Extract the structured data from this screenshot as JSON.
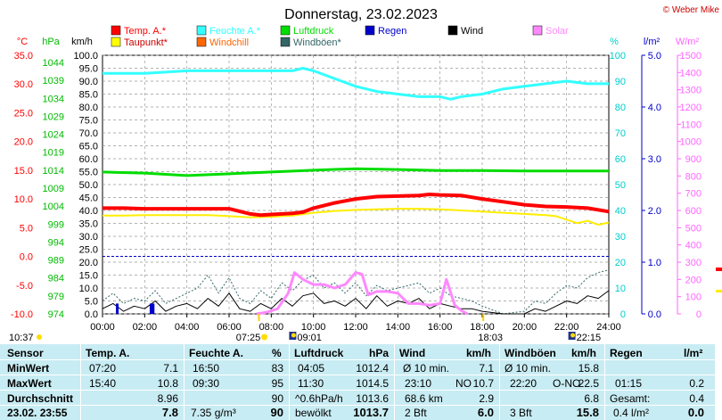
{
  "chart_data": {
    "type": "line",
    "title": "Donnerstag, 23.02.2023",
    "credit": "© Weber Mike",
    "xticks": [
      "00:00",
      "02:00",
      "04:00",
      "06:00",
      "08:00",
      "10:00",
      "12:00",
      "14:00",
      "16:00",
      "18:00",
      "20:00",
      "22:00",
      "24:00"
    ],
    "axes": {
      "temp": {
        "unit": "°C",
        "min": -10,
        "max": 35,
        "ticks": [
          "35.0",
          "30.0",
          "25.0",
          "20.0",
          "15.0",
          "10.0",
          "5.0",
          "0.0",
          "-5.0",
          "-10.0"
        ]
      },
      "pressure": {
        "unit": "hPa",
        "ticks": [
          "1044",
          "1039",
          "1034",
          "1029",
          "1024",
          "1019",
          "1014",
          "1009",
          "1004",
          "999",
          "994",
          "989",
          "984",
          "979",
          "974"
        ]
      },
      "wind": {
        "unit": "km/h",
        "min": 0,
        "max": 100,
        "ticks": [
          "100.0",
          "95.0",
          "90.0",
          "85.0",
          "80.0",
          "75.0",
          "70.0",
          "65.0",
          "60.0",
          "55.0",
          "50.0",
          "45.0",
          "40.0",
          "35.0",
          "30.0",
          "25.0",
          "20.0",
          "15.0",
          "10.0",
          "5.0",
          "0.0"
        ]
      },
      "humidity": {
        "unit": "%",
        "ticks": [
          "100",
          "90",
          "80",
          "70",
          "60",
          "50",
          "40",
          "30",
          "20",
          "10",
          "0"
        ]
      },
      "rain": {
        "unit": "l/m²",
        "ticks": [
          "5.0",
          "4.0",
          "3.0",
          "2.0",
          "1.0",
          "0.0"
        ]
      },
      "solar": {
        "unit": "W/m²",
        "ticks": [
          "1500",
          "1400",
          "1300",
          "1200",
          "1100",
          "1000",
          "900",
          "800",
          "700",
          "600",
          "500",
          "400",
          "300",
          "200",
          "100",
          "0"
        ]
      }
    },
    "legend": [
      {
        "name": "Temp. A.*",
        "color": "#ff0000"
      },
      {
        "name": "Feuchte A.*",
        "color": "#33ffff"
      },
      {
        "name": "Luftdruck",
        "color": "#00dd00"
      },
      {
        "name": "Regen",
        "color": "#0000cc"
      },
      {
        "name": "Wind",
        "color": "#000000"
      },
      {
        "name": "Solar",
        "color": "#ff88ff"
      },
      {
        "name": "Taupunkt*",
        "color": "#ffff00"
      },
      {
        "name": "Windchill",
        "color": "#ff6600"
      },
      {
        "name": "Windböen*",
        "color": "#336666"
      }
    ],
    "series": [
      {
        "name": "Temp. A.*",
        "unit": "°C",
        "x": [
          0,
          1,
          2,
          3,
          4,
          5,
          6,
          7,
          7.5,
          8,
          9,
          9.5,
          10,
          11,
          12,
          13,
          14,
          15,
          15.5,
          16,
          17,
          18,
          19,
          20,
          21,
          22,
          23,
          24
        ],
        "values": [
          8.4,
          8.4,
          8.3,
          8.3,
          8.3,
          8.3,
          8.3,
          7.4,
          7.2,
          7.3,
          7.5,
          7.7,
          8.4,
          9.3,
          10.0,
          10.4,
          10.5,
          10.6,
          10.8,
          10.7,
          10.6,
          10.0,
          9.5,
          9.0,
          8.7,
          8.6,
          8.4,
          7.8
        ]
      },
      {
        "name": "Taupunkt*",
        "unit": "°C",
        "x": [
          0,
          1,
          2,
          3,
          4,
          5,
          6,
          7,
          8,
          9,
          10,
          11,
          12,
          13,
          14,
          15,
          16,
          17,
          18,
          19,
          20,
          21,
          21.5,
          22,
          22.5,
          23,
          23.5,
          24
        ],
        "values": [
          7.1,
          7.1,
          7.2,
          7.2,
          7.2,
          7.2,
          7.0,
          6.8,
          6.9,
          7.1,
          7.6,
          7.9,
          8.1,
          8.2,
          8.3,
          8.3,
          8.2,
          8.0,
          7.8,
          7.6,
          7.4,
          7.2,
          7.0,
          6.4,
          5.8,
          6.2,
          5.5,
          5.9
        ]
      },
      {
        "name": "Feuchte A.*",
        "unit": "%",
        "x": [
          0,
          2,
          4,
          6,
          8,
          9,
          9.5,
          10,
          11,
          12,
          13,
          14,
          15,
          16,
          16.5,
          17,
          18,
          19,
          20,
          21,
          22,
          23,
          24
        ],
        "values": [
          93,
          93,
          94,
          94,
          94,
          94,
          95,
          94,
          91,
          88,
          86,
          85,
          84,
          84,
          83,
          84,
          85,
          87,
          88,
          89,
          90,
          89,
          89
        ]
      },
      {
        "name": "Luftdruck",
        "unit": "hPa",
        "x": [
          0,
          2,
          4,
          6,
          8,
          10,
          12,
          14,
          16,
          18,
          20,
          22,
          24
        ],
        "values": [
          1013.5,
          1013.2,
          1012.5,
          1013.0,
          1013.5,
          1014.0,
          1014.4,
          1014.2,
          1013.9,
          1013.9,
          1013.8,
          1013.8,
          1013.8
        ]
      },
      {
        "name": "Wind",
        "unit": "km/h",
        "x": [
          0,
          0.5,
          1,
          1.5,
          2,
          2.5,
          3,
          3.5,
          4,
          4.5,
          5,
          5.5,
          6,
          6.5,
          7,
          7.5,
          8,
          8.5,
          9,
          9.5,
          10,
          10.5,
          11,
          11.5,
          12,
          12.5,
          13,
          13.5,
          14,
          14.5,
          15,
          15.5,
          16,
          16.5,
          17,
          17.5,
          18,
          19,
          20,
          20.5,
          21,
          21.5,
          22,
          22.5,
          23,
          23.5,
          24
        ],
        "values": [
          2,
          4,
          1,
          3,
          2,
          5,
          1,
          3,
          4,
          2,
          6,
          3,
          8,
          2,
          1,
          4,
          2,
          6,
          3,
          7,
          8,
          4,
          5,
          3,
          6,
          2,
          7,
          3,
          5,
          4,
          6,
          2,
          4,
          3,
          2,
          2,
          1,
          0,
          0,
          2,
          1,
          3,
          5,
          4,
          7,
          6,
          9
        ]
      },
      {
        "name": "Windböen*",
        "unit": "km/h",
        "x": [
          0,
          0.5,
          1,
          1.5,
          2,
          2.5,
          3,
          3.5,
          4,
          4.5,
          5,
          5.5,
          6,
          6.5,
          7,
          7.5,
          8,
          8.5,
          9,
          9.5,
          10,
          10.5,
          11,
          11.5,
          12,
          12.5,
          13,
          13.5,
          14,
          14.5,
          15,
          15.5,
          16,
          16.5,
          17,
          17.5,
          18,
          19,
          20,
          20.5,
          21,
          21.5,
          22,
          22.5,
          23,
          23.5,
          24
        ],
        "values": [
          5,
          8,
          4,
          6,
          5,
          9,
          4,
          6,
          8,
          10,
          15,
          8,
          14,
          6,
          4,
          9,
          6,
          12,
          9,
          13,
          15,
          10,
          12,
          8,
          12,
          7,
          11,
          9,
          10,
          11,
          12,
          8,
          10,
          7,
          6,
          5,
          3,
          0,
          1,
          5,
          4,
          8,
          11,
          10,
          14,
          16,
          17
        ]
      },
      {
        "name": "Solar",
        "unit": "W/m²",
        "x": [
          7.3,
          7.8,
          8.3,
          8.8,
          9.1,
          9.5,
          10,
          10.5,
          11,
          11.5,
          12,
          12.3,
          12.6,
          13,
          13.5,
          14,
          14.5,
          15,
          15.5,
          16,
          16.3,
          16.7,
          17,
          17.3
        ],
        "values": [
          0,
          10,
          30,
          120,
          240,
          200,
          170,
          170,
          150,
          170,
          240,
          230,
          110,
          130,
          130,
          120,
          60,
          60,
          50,
          60,
          200,
          50,
          20,
          0
        ]
      },
      {
        "name": "Regen",
        "unit": "l/m²",
        "x": [
          0.7,
          2.3,
          2.4
        ],
        "values": [
          0.2,
          0.2,
          0.2
        ]
      }
    ]
  },
  "markers": {
    "sunrise": "07:25",
    "moonset": "09:01",
    "sunset": "18:03",
    "moonrise": "22:15",
    "current_time": "10:37"
  },
  "table": {
    "headers": {
      "sensor": "Sensor",
      "temp": "Temp. A.",
      "hum": "Feuchte A.",
      "hum_unit": "%",
      "press": "Luftdruck",
      "press_unit": "hPa",
      "wind": "Wind",
      "wind_unit": "km/h",
      "gust": "Windböen",
      "gust_unit": "km/h",
      "rain": "Regen",
      "rain_unit": "l/m²"
    },
    "rows": {
      "min": {
        "label": "MinWert",
        "temp_time": "07:20",
        "temp": "7.1",
        "hum_time": "16:50",
        "hum": "83",
        "press_time": "04:05",
        "press": "1012.4",
        "wind_label": "Ø 10 min.",
        "wind": "7.1",
        "gust_label": "Ø 10 min.",
        "gust": "15.8",
        "rain_label": "",
        "rain": ""
      },
      "max": {
        "label": "MaxWert",
        "temp_time": "15:40",
        "temp": "10.8",
        "hum_time": "09:30",
        "hum": "95",
        "press_time": "11:30",
        "press": "1014.5",
        "wind_time": "23:10",
        "wind_dir": "NO",
        "wind": "10.7",
        "gust_time": "22:20",
        "gust_dir": "O-NO",
        "gust": "22.5",
        "rain_time": "01:15",
        "rain": "0.2"
      },
      "avg": {
        "label": "Durchschnitt",
        "temp": "8.96",
        "hum": "90",
        "press_label": "^0.6hPa/h",
        "press": "1013.6",
        "wind_label": "68.6 km",
        "wind": "2.9",
        "gust": "6.8",
        "rain_label": "Gesamt:",
        "rain": "0.4"
      },
      "now": {
        "label": "23.02. 23:55",
        "temp": "7.8",
        "hum_label": "7.35 g/m³",
        "hum": "90",
        "press_label": "bewölkt",
        "press": "1013.7",
        "wind_label": "2 Bft",
        "wind": "6.0",
        "gust_label": "3 Bft",
        "gust": "15.8",
        "rain_label": "0.4 l/m²",
        "rain": "0.0"
      }
    }
  }
}
